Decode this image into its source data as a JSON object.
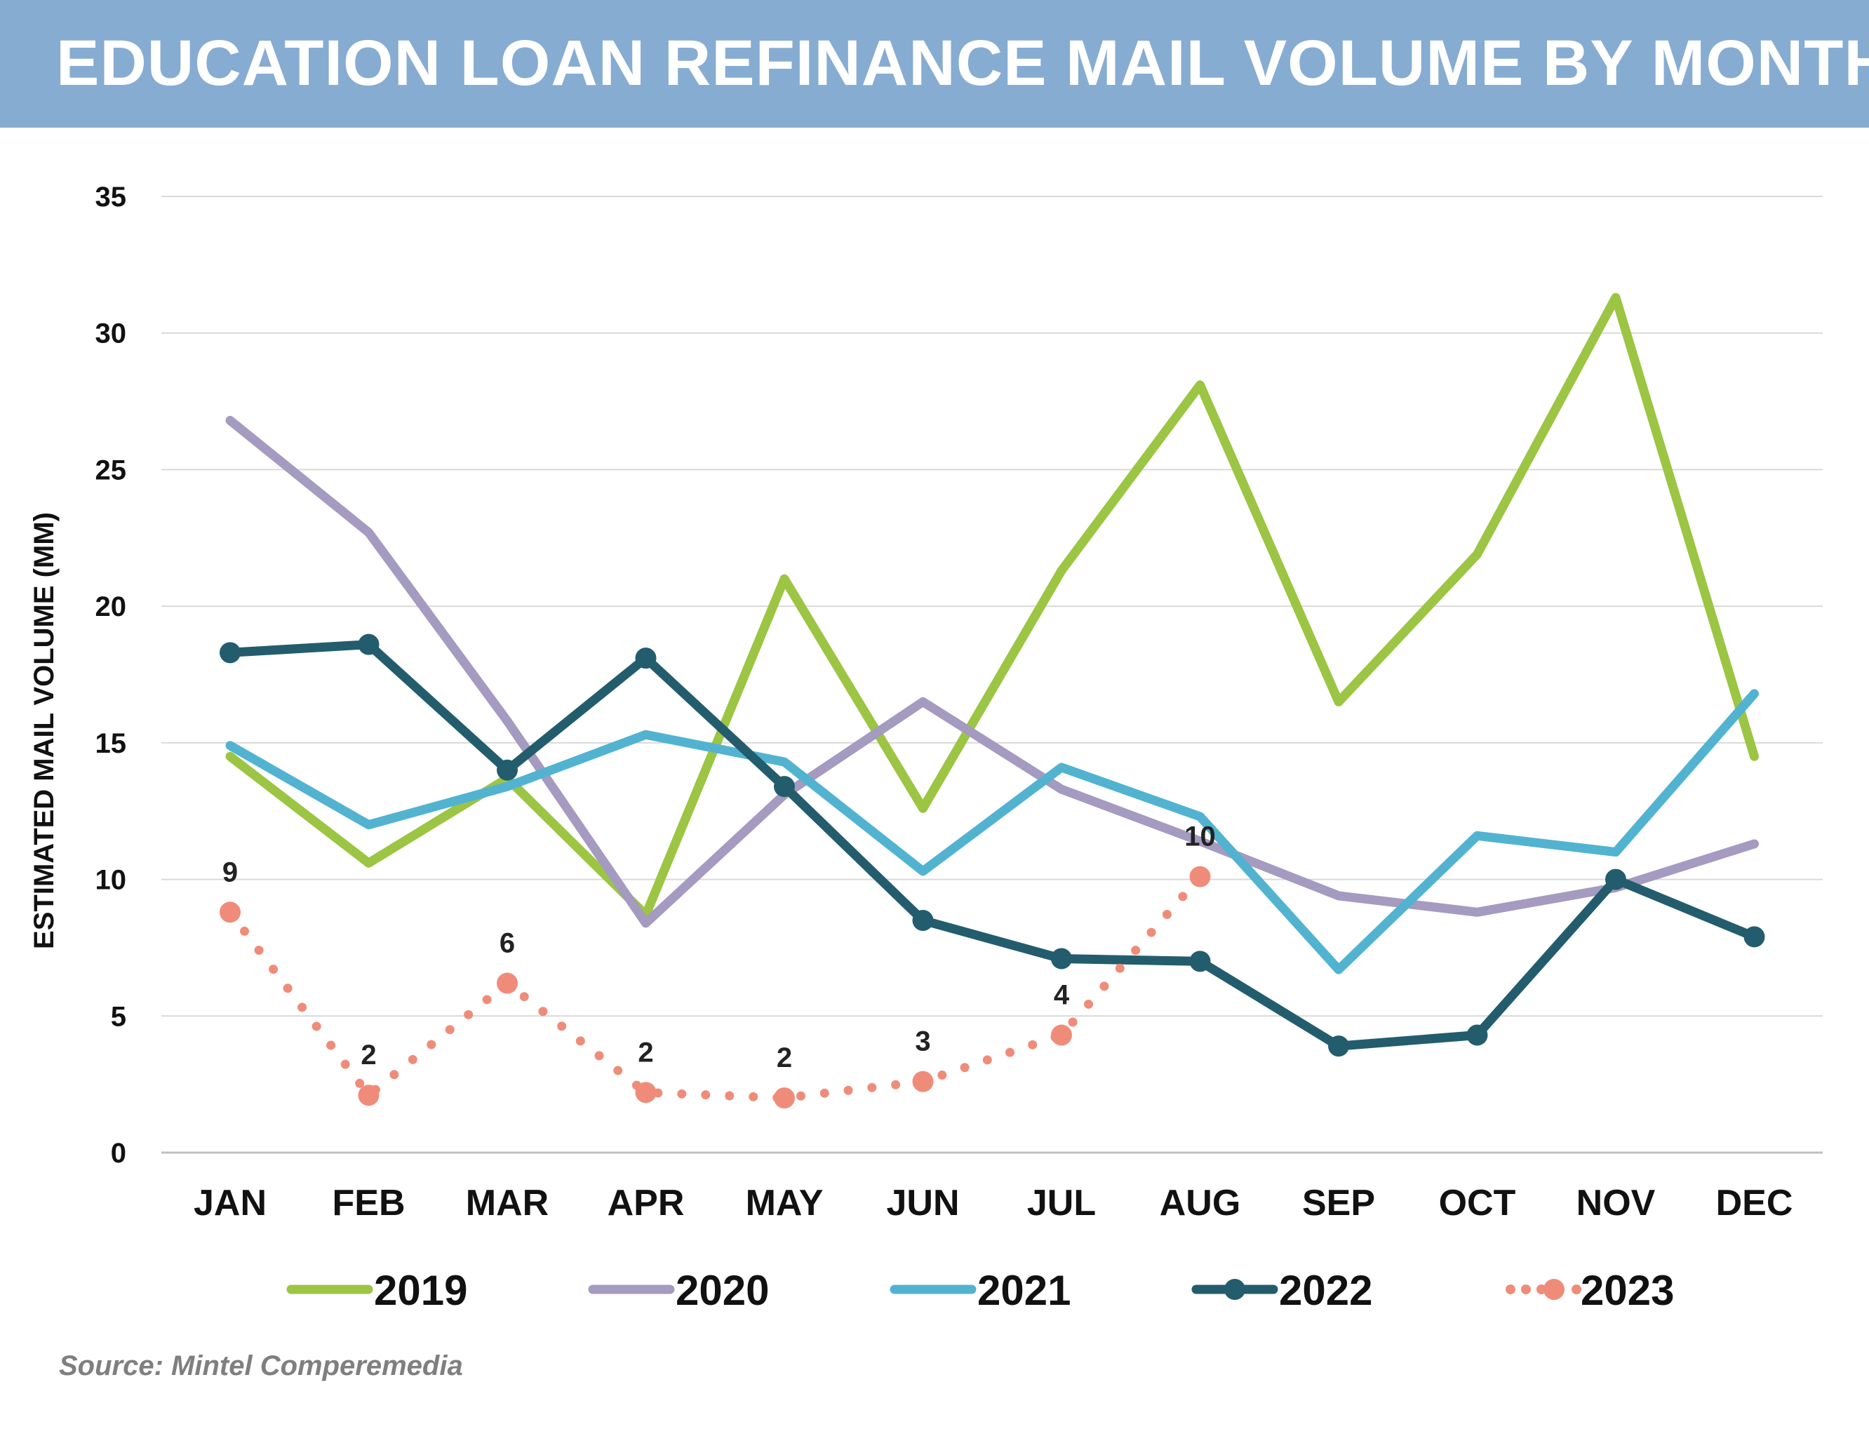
{
  "title": "EDUCATION LOAN REFINANCE MAIL VOLUME BY MONTH",
  "source": "Source: Mintel Comperemedia",
  "chart_data": {
    "type": "line",
    "title": "EDUCATION LOAN REFINANCE MAIL VOLUME BY MONTH",
    "xlabel": "",
    "ylabel": "ESTIMATED MAIL VOLUME (MM)",
    "ylim": [
      0,
      35
    ],
    "yticks": [
      0,
      5,
      10,
      15,
      20,
      25,
      30,
      35
    ],
    "grid": true,
    "legend": "bottom",
    "categories": [
      "JAN",
      "FEB",
      "MAR",
      "APR",
      "MAY",
      "JUN",
      "JUL",
      "AUG",
      "SEP",
      "OCT",
      "NOV",
      "DEC"
    ],
    "series": [
      {
        "name": "2019",
        "color": "#9bc543",
        "style": "solid",
        "markers": false,
        "values": [
          14.5,
          10.6,
          13.7,
          8.7,
          21.0,
          12.6,
          21.3,
          28.1,
          16.5,
          21.9,
          31.3,
          14.5
        ]
      },
      {
        "name": "2020",
        "color": "#a59ac0",
        "style": "solid",
        "markers": false,
        "values": [
          26.8,
          22.7,
          15.8,
          8.4,
          13.1,
          16.5,
          13.3,
          11.4,
          9.4,
          8.8,
          9.7,
          11.3
        ]
      },
      {
        "name": "2021",
        "color": "#52b3d1",
        "style": "solid",
        "markers": false,
        "values": [
          14.9,
          12.0,
          13.4,
          15.3,
          14.3,
          10.3,
          14.1,
          12.3,
          6.7,
          11.6,
          11.0,
          16.8
        ]
      },
      {
        "name": "2022",
        "color": "#235d6d",
        "style": "solid",
        "markers": true,
        "values": [
          18.3,
          18.6,
          14.0,
          18.1,
          13.4,
          8.5,
          7.1,
          7.0,
          3.9,
          4.3,
          10.0,
          7.9
        ]
      },
      {
        "name": "2023",
        "color": "#ef8c79",
        "style": "dotted",
        "markers": true,
        "values": [
          8.8,
          2.1,
          6.2,
          2.2,
          2.0,
          2.6,
          4.3,
          10.1,
          null,
          null,
          null,
          null
        ],
        "data_labels": [
          "9",
          "2",
          "6",
          "2",
          "2",
          "3",
          "4",
          "10",
          null,
          null,
          null,
          null
        ]
      }
    ]
  }
}
